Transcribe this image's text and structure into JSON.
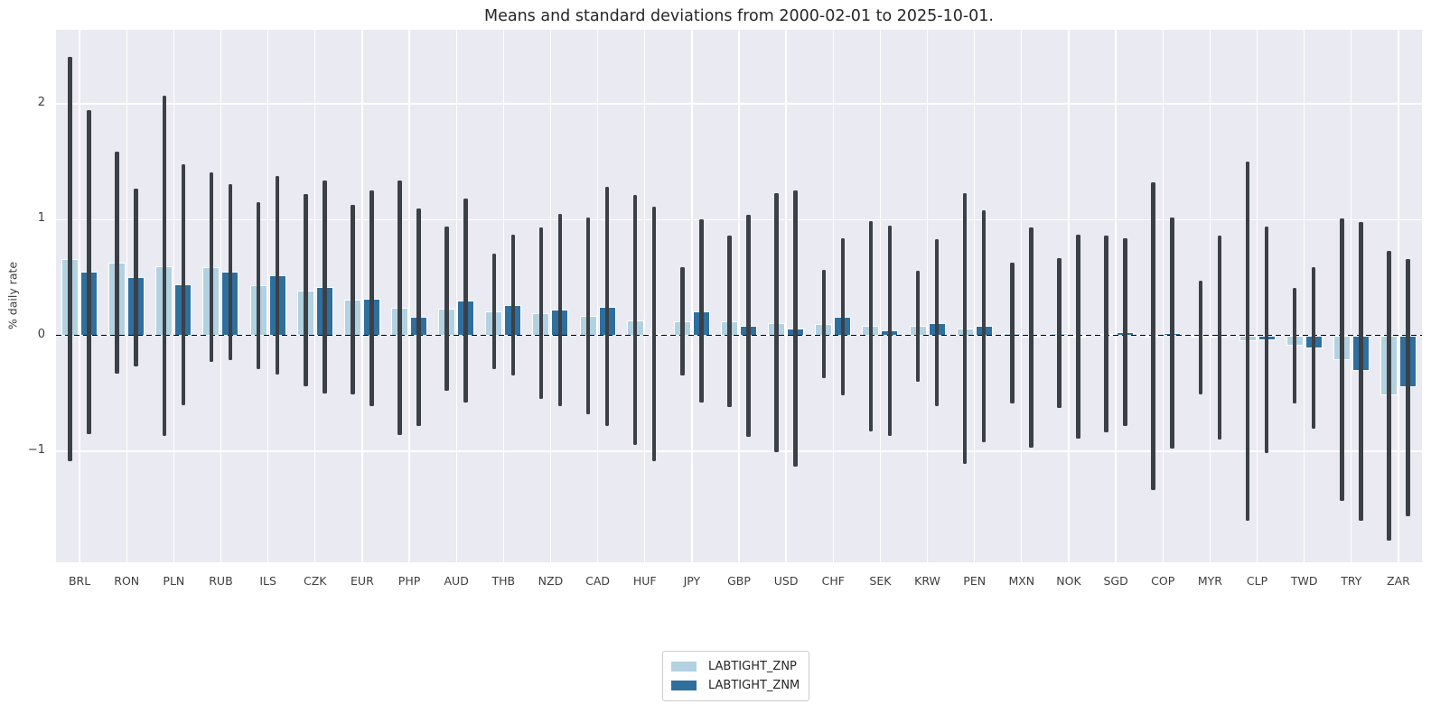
{
  "chart_data": {
    "type": "bar",
    "title": "Means and standard deviations from 2000-02-01 to 2025-10-01.",
    "xlabel": "",
    "ylabel": "% daily rate",
    "categories": [
      "BRL",
      "RON",
      "PLN",
      "RUB",
      "ILS",
      "CZK",
      "EUR",
      "PHP",
      "AUD",
      "THB",
      "NZD",
      "CAD",
      "HUF",
      "JPY",
      "GBP",
      "USD",
      "CHF",
      "SEK",
      "KRW",
      "PEN",
      "MXN",
      "NOK",
      "SGD",
      "COP",
      "MYR",
      "CLP",
      "TWD",
      "TRY",
      "ZAR"
    ],
    "series": [
      {
        "name": "LABTIGHT_ZNP",
        "color": "#b2d1e1",
        "means": [
          0.66,
          0.63,
          0.6,
          0.59,
          0.43,
          0.39,
          0.31,
          0.24,
          0.23,
          0.21,
          0.19,
          0.17,
          0.13,
          0.12,
          0.12,
          0.11,
          0.1,
          0.08,
          0.08,
          0.06,
          0.02,
          0.02,
          0.01,
          -0.01,
          -0.02,
          -0.05,
          -0.09,
          -0.21,
          -0.52
        ],
        "stds": [
          1.75,
          0.96,
          1.47,
          0.82,
          0.72,
          0.83,
          0.82,
          1.1,
          0.71,
          0.5,
          0.74,
          0.85,
          1.08,
          0.47,
          0.74,
          1.12,
          0.47,
          0.91,
          0.48,
          1.17,
          0.61,
          0.65,
          0.85,
          1.33,
          0.49,
          1.55,
          0.5,
          1.22,
          1.25
        ]
      },
      {
        "name": "LABTIGHT_ZNM",
        "color": "#2e6f9e",
        "means": [
          0.55,
          0.5,
          0.44,
          0.55,
          0.52,
          0.42,
          0.32,
          0.16,
          0.3,
          0.26,
          0.22,
          0.25,
          0.01,
          0.21,
          0.08,
          0.06,
          0.16,
          0.04,
          0.11,
          0.08,
          -0.02,
          -0.01,
          0.03,
          0.02,
          -0.02,
          -0.04,
          -0.11,
          -0.31,
          -0.45
        ],
        "stds": [
          1.4,
          0.77,
          1.04,
          0.76,
          0.86,
          0.92,
          0.93,
          0.94,
          0.88,
          0.61,
          0.83,
          1.03,
          1.1,
          0.79,
          0.96,
          1.19,
          0.68,
          0.91,
          0.72,
          1.0,
          0.95,
          0.88,
          0.81,
          1.0,
          0.88,
          0.98,
          0.7,
          1.29,
          1.11
        ]
      }
    ],
    "error_bars": true,
    "yticks": [
      -1,
      0,
      1,
      2
    ],
    "ylim": [
      -1.96,
      2.64
    ],
    "grid": true,
    "zero_line": "dashed-black",
    "legend_position": "bottom-center",
    "colors": {
      "plot_background": "#eaeaf2",
      "grid": "#ffffff",
      "error_bar": "#3b4046",
      "zero_line": "#000000",
      "text": "#262626",
      "tick_text": "#3d3d3d"
    }
  }
}
